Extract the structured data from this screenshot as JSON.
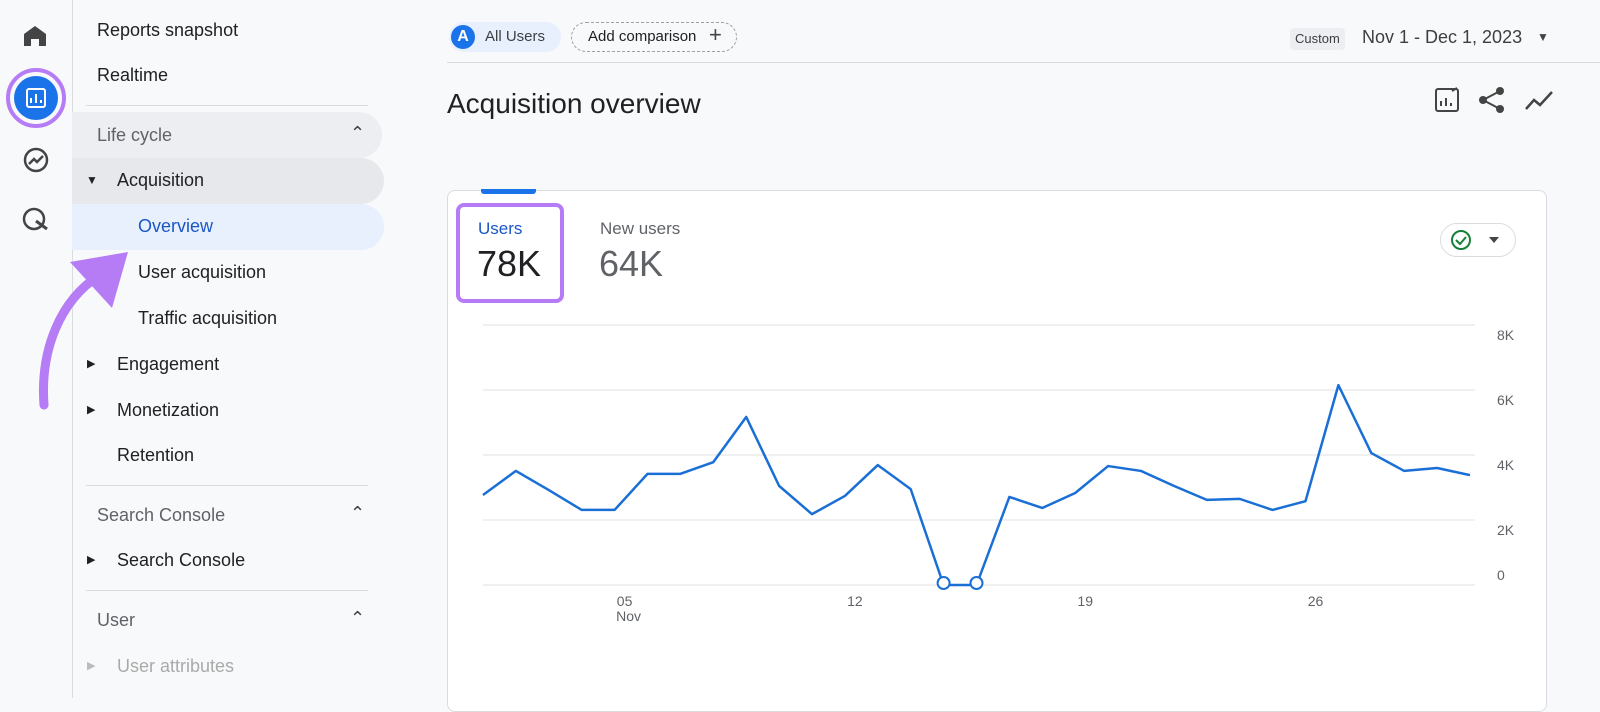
{
  "nav": {
    "items": [
      "Reports snapshot",
      "Realtime"
    ],
    "sections": [
      {
        "title": "Life cycle",
        "items": [
          "Acquisition",
          "Overview",
          "User acquisition",
          "Traffic acquisition",
          "Engagement",
          "Monetization",
          "Retention"
        ]
      },
      {
        "title": "Search Console",
        "items": [
          "Search Console"
        ]
      },
      {
        "title": "User",
        "items": [
          "User attributes"
        ]
      }
    ]
  },
  "header": {
    "segment_badge": "A",
    "segment": "All Users",
    "add_comparison": "Add comparison",
    "date_mode": "Custom",
    "date_range": "Nov 1 - Dec 1, 2023",
    "title": "Acquisition overview"
  },
  "card": {
    "metrics": [
      {
        "label": "Users",
        "value": "78K"
      },
      {
        "label": "New users",
        "value": "64K"
      }
    ]
  },
  "chart_data": {
    "type": "line",
    "x_sublabel": "Nov",
    "categories": [
      null,
      null,
      null,
      null,
      "05",
      null,
      null,
      null,
      null,
      null,
      null,
      "12",
      null,
      null,
      null,
      null,
      null,
      null,
      "19",
      null,
      null,
      null,
      null,
      null,
      null,
      "26",
      null,
      null,
      null,
      null,
      null
    ],
    "series": [
      {
        "name": "Users",
        "color": "#1a6fd6",
        "values": [
          2770,
          3510,
          2920,
          2310,
          2310,
          3420,
          3420,
          3780,
          5170,
          3050,
          2180,
          2740,
          3690,
          2950,
          0,
          0,
          2710,
          2370,
          2830,
          3660,
          3510,
          3050,
          2620,
          2650,
          2310,
          2580,
          6150,
          4060,
          3510,
          3600,
          3380
        ]
      }
    ],
    "ylim": [
      0,
      8000
    ],
    "yticks": [
      {
        "value": 0,
        "label": "0"
      },
      {
        "value": 2000,
        "label": "2K"
      },
      {
        "value": 4000,
        "label": "4K"
      },
      {
        "value": 6000,
        "label": "6K"
      },
      {
        "value": 8000,
        "label": "8K"
      }
    ],
    "grid": true
  }
}
